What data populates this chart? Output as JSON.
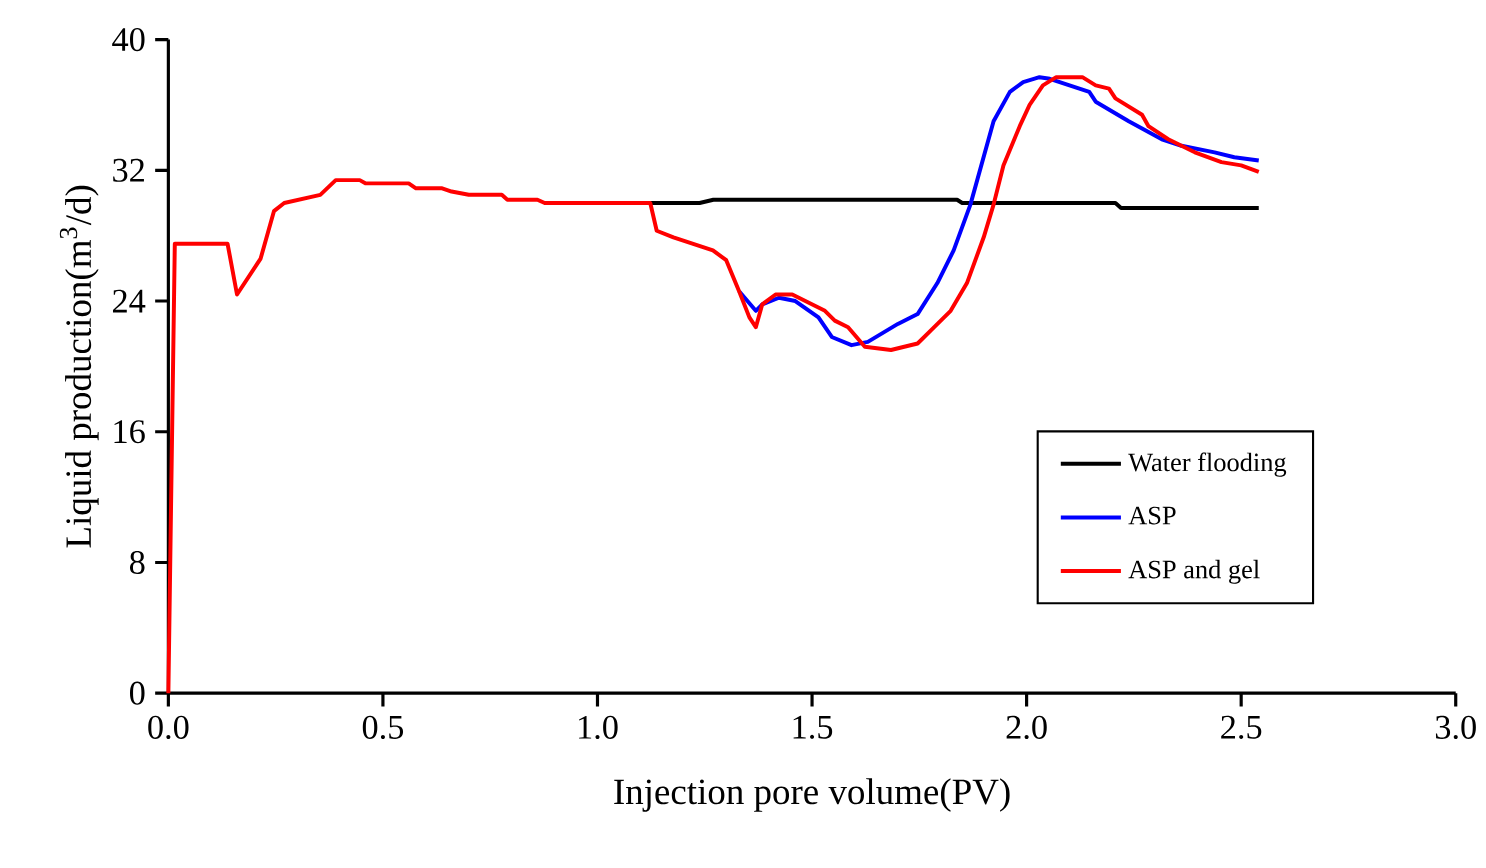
{
  "chart_data": {
    "type": "line",
    "xlabel": "Injection pore volume(PV)",
    "ylabel": "Liquid production(m$^{3}$/d)",
    "xlim": [
      0,
      3.0
    ],
    "ylim": [
      0,
      40
    ],
    "xticks": [
      {
        "value": 0,
        "label": "0.0"
      },
      {
        "value": 0.5,
        "label": "0.5"
      },
      {
        "value": 1.0,
        "label": "1.0"
      },
      {
        "value": 1.5,
        "label": "1.5"
      },
      {
        "value": 2.0,
        "label": "2.0"
      },
      {
        "value": 2.5,
        "label": "2.5"
      },
      {
        "value": 3.0,
        "label": "3.0"
      }
    ],
    "yticks": [
      0,
      8,
      16,
      24,
      32,
      40
    ],
    "grid": false,
    "legend": "bottom right",
    "marker": "none",
    "line_style": "solid",
    "series": [
      {
        "name": "Water flooding",
        "color": "#000000",
        "x": [
          1.123,
          1.238,
          1.27,
          1.838,
          1.85,
          2.207,
          2.22,
          2.541
        ],
        "values": [
          30.0,
          30.0,
          30.2,
          30.2,
          30.0,
          30.0,
          29.7,
          29.7
        ]
      },
      {
        "name": "ASP",
        "color": "#0000ff",
        "x": [
          1.33,
          1.369,
          1.384,
          1.423,
          1.461,
          1.515,
          1.546,
          1.592,
          1.63,
          1.7,
          1.746,
          1.792,
          1.83,
          1.869,
          1.923,
          1.961,
          1.992,
          2.03,
          2.054,
          2.1,
          2.146,
          2.161,
          2.238,
          2.315,
          2.361,
          2.438,
          2.484,
          2.541
        ],
        "values": [
          24.6,
          23.4,
          23.8,
          24.2,
          24.0,
          23.0,
          21.8,
          21.3,
          21.5,
          22.6,
          23.2,
          25.1,
          27.1,
          29.9,
          35.0,
          36.8,
          37.4,
          37.7,
          37.6,
          37.2,
          36.8,
          36.2,
          35.0,
          33.9,
          33.5,
          33.1,
          32.8,
          32.6
        ]
      },
      {
        "name": "ASP and gel",
        "color": "#ff0000",
        "x": [
          0,
          0.015,
          0.138,
          0.16,
          0.215,
          0.246,
          0.27,
          0.354,
          0.39,
          0.446,
          0.46,
          0.56,
          0.577,
          0.638,
          0.66,
          0.7,
          0.777,
          0.79,
          0.86,
          0.877,
          1.123,
          1.138,
          1.177,
          1.223,
          1.269,
          1.3,
          1.33,
          1.354,
          1.369,
          1.384,
          1.415,
          1.454,
          1.53,
          1.553,
          1.584,
          1.623,
          1.684,
          1.746,
          1.777,
          1.823,
          1.861,
          1.9,
          1.923,
          1.946,
          1.984,
          2.007,
          2.038,
          2.069,
          2.13,
          2.161,
          2.192,
          2.207,
          2.269,
          2.284,
          2.33,
          2.392,
          2.454,
          2.5,
          2.541
        ],
        "values": [
          0,
          27.5,
          27.5,
          24.4,
          26.6,
          29.5,
          30.0,
          30.5,
          31.4,
          31.4,
          31.2,
          31.2,
          30.9,
          30.9,
          30.7,
          30.5,
          30.5,
          30.2,
          30.2,
          30.0,
          30.0,
          28.3,
          27.9,
          27.5,
          27.1,
          26.5,
          24.6,
          23.0,
          22.4,
          23.8,
          24.4,
          24.4,
          23.4,
          22.8,
          22.4,
          21.2,
          21.0,
          21.4,
          22.2,
          23.4,
          25.1,
          27.9,
          29.9,
          32.3,
          34.7,
          36.0,
          37.2,
          37.7,
          37.7,
          37.2,
          37.0,
          36.4,
          35.4,
          34.7,
          33.9,
          33.1,
          32.5,
          32.3,
          31.9
        ]
      }
    ]
  }
}
